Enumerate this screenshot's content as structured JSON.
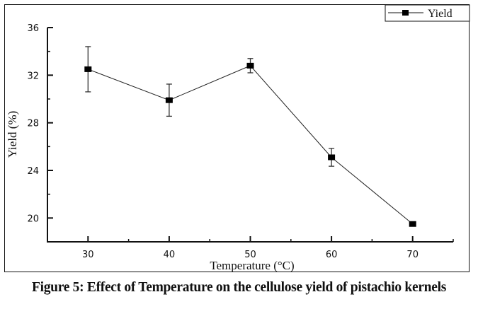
{
  "caption": "Figure 5: Effect of Temperature on the cellulose yield of pistachio kernels",
  "chart_data": {
    "type": "line",
    "title": "",
    "xlabel": "Temperature (°C)",
    "ylabel": "Yield (%)",
    "xlim": [
      25,
      75
    ],
    "ylim": [
      18,
      36
    ],
    "x_ticks": [
      30,
      40,
      50,
      60,
      70
    ],
    "y_ticks": [
      20,
      24,
      28,
      32,
      36
    ],
    "grid": false,
    "legend": {
      "position": "top-right",
      "entries": [
        "Yield"
      ]
    },
    "series": [
      {
        "name": "Yield",
        "marker": "square",
        "color": "#000000",
        "x": [
          30,
          40,
          50,
          60,
          70
        ],
        "y": [
          32.5,
          29.9,
          32.8,
          25.1,
          19.5
        ],
        "error": [
          1.9,
          1.35,
          0.6,
          0.75,
          0.1
        ]
      }
    ]
  }
}
